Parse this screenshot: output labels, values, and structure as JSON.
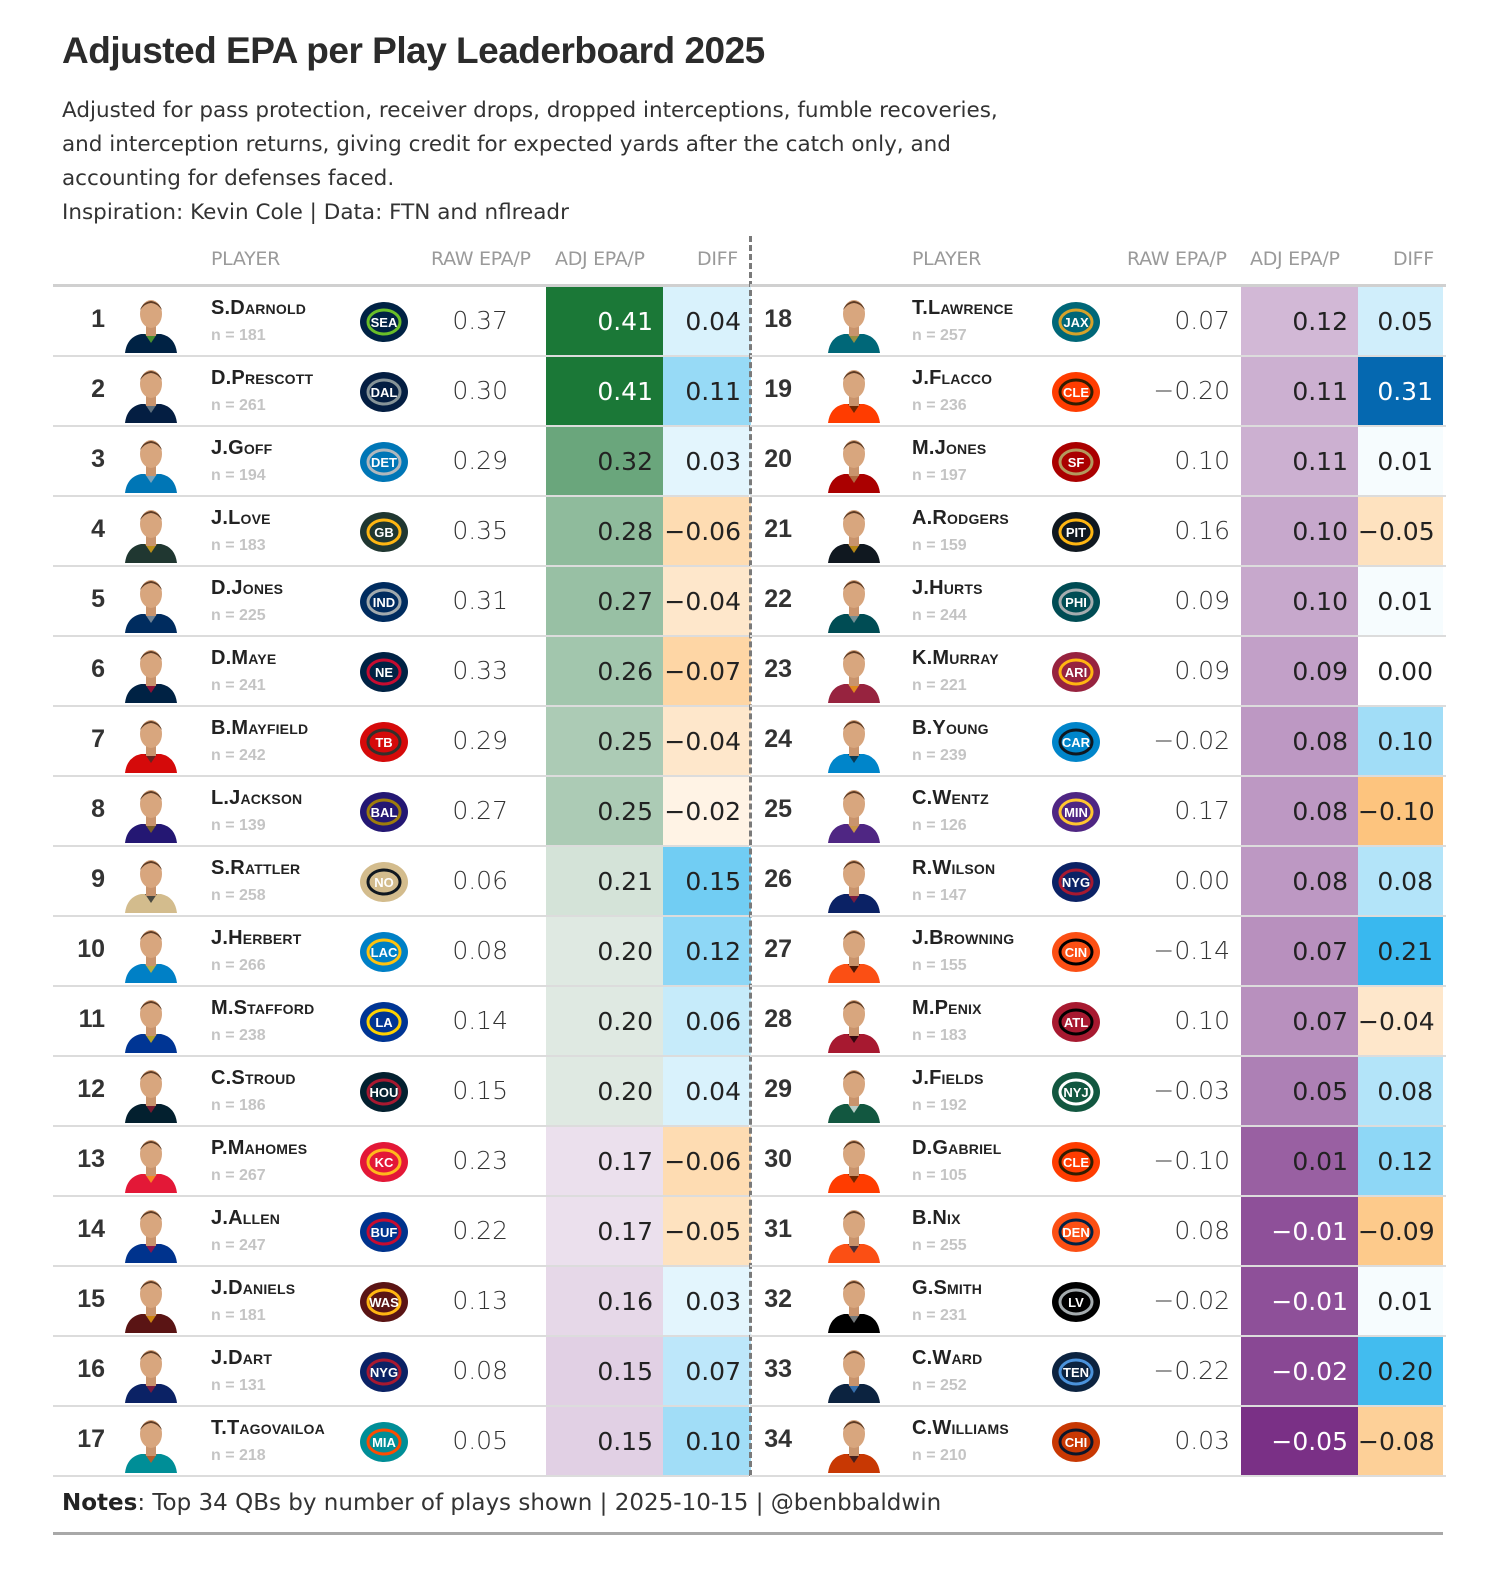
{
  "header": {
    "title": "Adjusted EPA per Play Leaderboard 2025",
    "subtitle_lines": [
      "Adjusted for pass protection, receiver drops, dropped interceptions, fumble recoveries,",
      "and interception returns, giving credit for expected yards after the catch only, and",
      "accounting for defenses faced.",
      "Inspiration: Kevin Cole | Data: FTN and nflreadr"
    ]
  },
  "columns": {
    "player": "PLAYER",
    "raw": "RAW EPA/P",
    "adj": "ADJ EPA/P",
    "diff": "DIFF"
  },
  "footer": {
    "notes_label": "Notes",
    "notes_text": ": Top 34 QBs by number of plays shown | 2025-10-15 | @benbbaldwin"
  },
  "colors": {
    "adj_high": "#1b7837",
    "adj_mid": "#f7f7f7",
    "adj_low": "#762a83",
    "diff_pos": "#0568b0",
    "diff_zero": "#ffffff",
    "diff_neg": "#fdc47e"
  },
  "chart_data": {
    "type": "table",
    "title": "Adjusted EPA per Play Leaderboard 2025",
    "columns": [
      "Rank",
      "Player",
      "n",
      "Team",
      "RAW EPA/P",
      "ADJ EPA/P",
      "DIFF"
    ],
    "rows": [
      {
        "rank": 1,
        "player": "S.Darnold",
        "n": "n = 181",
        "team": "SEA",
        "team_color": "#002244",
        "team_accent": "#69be28",
        "raw": "0.37",
        "adj": "0.41",
        "diff": "0.04"
      },
      {
        "rank": 2,
        "player": "D.Prescott",
        "n": "n = 261",
        "team": "DAL",
        "team_color": "#041e42",
        "team_accent": "#869397",
        "raw": "0.30",
        "adj": "0.41",
        "diff": "0.11"
      },
      {
        "rank": 3,
        "player": "J.Goff",
        "n": "n = 194",
        "team": "DET",
        "team_color": "#0076b6",
        "team_accent": "#b0b7bc",
        "raw": "0.29",
        "adj": "0.32",
        "diff": "0.03"
      },
      {
        "rank": 4,
        "player": "J.Love",
        "n": "n = 183",
        "team": "GB",
        "team_color": "#203731",
        "team_accent": "#ffb612",
        "raw": "0.35",
        "adj": "0.28",
        "diff": "−0.06"
      },
      {
        "rank": 5,
        "player": "D.Jones",
        "n": "n = 225",
        "team": "IND",
        "team_color": "#002c5f",
        "team_accent": "#a2aaad",
        "raw": "0.31",
        "adj": "0.27",
        "diff": "−0.04"
      },
      {
        "rank": 6,
        "player": "D.Maye",
        "n": "n = 241",
        "team": "NE",
        "team_color": "#002244",
        "team_accent": "#c60c30",
        "raw": "0.33",
        "adj": "0.26",
        "diff": "−0.07"
      },
      {
        "rank": 7,
        "player": "B.Mayfield",
        "n": "n = 242",
        "team": "TB",
        "team_color": "#d50a0a",
        "team_accent": "#34302b",
        "raw": "0.29",
        "adj": "0.25",
        "diff": "−0.04"
      },
      {
        "rank": 8,
        "player": "L.Jackson",
        "n": "n = 139",
        "team": "BAL",
        "team_color": "#241773",
        "team_accent": "#9e7c0c",
        "raw": "0.27",
        "adj": "0.25",
        "diff": "−0.02"
      },
      {
        "rank": 9,
        "player": "S.Rattler",
        "n": "n = 258",
        "team": "NO",
        "team_color": "#d3bc8d",
        "team_accent": "#101820",
        "raw": "0.06",
        "adj": "0.21",
        "diff": "0.15"
      },
      {
        "rank": 10,
        "player": "J.Herbert",
        "n": "n = 266",
        "team": "LAC",
        "team_color": "#0080c6",
        "team_accent": "#ffc20e",
        "raw": "0.08",
        "adj": "0.20",
        "diff": "0.12"
      },
      {
        "rank": 11,
        "player": "M.Stafford",
        "n": "n = 238",
        "team": "LA",
        "team_color": "#003594",
        "team_accent": "#ffd100",
        "raw": "0.14",
        "adj": "0.20",
        "diff": "0.06"
      },
      {
        "rank": 12,
        "player": "C.Stroud",
        "n": "n = 186",
        "team": "HOU",
        "team_color": "#03202f",
        "team_accent": "#a71930",
        "raw": "0.15",
        "adj": "0.20",
        "diff": "0.04"
      },
      {
        "rank": 13,
        "player": "P.Mahomes",
        "n": "n = 267",
        "team": "KC",
        "team_color": "#e31837",
        "team_accent": "#ffb81c",
        "raw": "0.23",
        "adj": "0.17",
        "diff": "−0.06"
      },
      {
        "rank": 14,
        "player": "J.Allen",
        "n": "n = 247",
        "team": "BUF",
        "team_color": "#00338d",
        "team_accent": "#c60c30",
        "raw": "0.22",
        "adj": "0.17",
        "diff": "−0.05"
      },
      {
        "rank": 15,
        "player": "J.Daniels",
        "n": "n = 181",
        "team": "WAS",
        "team_color": "#5a1414",
        "team_accent": "#ffb612",
        "raw": "0.13",
        "adj": "0.16",
        "diff": "0.03"
      },
      {
        "rank": 16,
        "player": "J.Dart",
        "n": "n = 131",
        "team": "NYG",
        "team_color": "#0b2265",
        "team_accent": "#a71930",
        "raw": "0.08",
        "adj": "0.15",
        "diff": "0.07"
      },
      {
        "rank": 17,
        "player": "T.Tagovailoa",
        "n": "n = 218",
        "team": "MIA",
        "team_color": "#008e97",
        "team_accent": "#fc4c02",
        "raw": "0.05",
        "adj": "0.15",
        "diff": "0.10"
      },
      {
        "rank": 18,
        "player": "T.Lawrence",
        "n": "n = 257",
        "team": "JAX",
        "team_color": "#006778",
        "team_accent": "#d7a22a",
        "raw": "0.07",
        "adj": "0.12",
        "diff": "0.05"
      },
      {
        "rank": 19,
        "player": "J.Flacco",
        "n": "n = 236",
        "team": "CLE",
        "team_color": "#ff3c00",
        "team_accent": "#311d00",
        "raw": "−0.20",
        "adj": "0.11",
        "diff": "0.31"
      },
      {
        "rank": 20,
        "player": "M.Jones",
        "n": "n = 197",
        "team": "SF",
        "team_color": "#aa0000",
        "team_accent": "#b3995d",
        "raw": "0.10",
        "adj": "0.11",
        "diff": "0.01"
      },
      {
        "rank": 21,
        "player": "A.Rodgers",
        "n": "n = 159",
        "team": "PIT",
        "team_color": "#101820",
        "team_accent": "#ffb612",
        "raw": "0.16",
        "adj": "0.10",
        "diff": "−0.05"
      },
      {
        "rank": 22,
        "player": "J.Hurts",
        "n": "n = 244",
        "team": "PHI",
        "team_color": "#004c54",
        "team_accent": "#a5acaf",
        "raw": "0.09",
        "adj": "0.10",
        "diff": "0.01"
      },
      {
        "rank": 23,
        "player": "K.Murray",
        "n": "n = 221",
        "team": "ARI",
        "team_color": "#97233f",
        "team_accent": "#ffb612",
        "raw": "0.09",
        "adj": "0.09",
        "diff": "0.00"
      },
      {
        "rank": 24,
        "player": "B.Young",
        "n": "n = 239",
        "team": "CAR",
        "team_color": "#0085ca",
        "team_accent": "#101820",
        "raw": "−0.02",
        "adj": "0.08",
        "diff": "0.10"
      },
      {
        "rank": 25,
        "player": "C.Wentz",
        "n": "n = 126",
        "team": "MIN",
        "team_color": "#4f2683",
        "team_accent": "#ffc62f",
        "raw": "0.17",
        "adj": "0.08",
        "diff": "−0.10"
      },
      {
        "rank": 26,
        "player": "R.Wilson",
        "n": "n = 147",
        "team": "NYG",
        "team_color": "#0b2265",
        "team_accent": "#a71930",
        "raw": "0.00",
        "adj": "0.08",
        "diff": "0.08"
      },
      {
        "rank": 27,
        "player": "J.Browning",
        "n": "n = 155",
        "team": "CIN",
        "team_color": "#fb4f14",
        "team_accent": "#000000",
        "raw": "−0.14",
        "adj": "0.07",
        "diff": "0.21"
      },
      {
        "rank": 28,
        "player": "M.Penix",
        "n": "n = 183",
        "team": "ATL",
        "team_color": "#a71930",
        "team_accent": "#000000",
        "raw": "0.10",
        "adj": "0.07",
        "diff": "−0.04"
      },
      {
        "rank": 29,
        "player": "J.Fields",
        "n": "n = 192",
        "team": "NYJ",
        "team_color": "#125740",
        "team_accent": "#ffffff",
        "raw": "−0.03",
        "adj": "0.05",
        "diff": "0.08"
      },
      {
        "rank": 30,
        "player": "D.Gabriel",
        "n": "n = 105",
        "team": "CLE",
        "team_color": "#ff3c00",
        "team_accent": "#311d00",
        "raw": "−0.10",
        "adj": "0.01",
        "diff": "0.12"
      },
      {
        "rank": 31,
        "player": "B.Nix",
        "n": "n = 255",
        "team": "DEN",
        "team_color": "#fb4f14",
        "team_accent": "#002244",
        "raw": "0.08",
        "adj": "−0.01",
        "diff": "−0.09"
      },
      {
        "rank": 32,
        "player": "G.Smith",
        "n": "n = 231",
        "team": "LV",
        "team_color": "#000000",
        "team_accent": "#a5acaf",
        "raw": "−0.02",
        "adj": "−0.01",
        "diff": "0.01"
      },
      {
        "rank": 33,
        "player": "C.Ward",
        "n": "n = 252",
        "team": "TEN",
        "team_color": "#0c2340",
        "team_accent": "#4b92db",
        "raw": "−0.22",
        "adj": "−0.02",
        "diff": "0.20"
      },
      {
        "rank": 34,
        "player": "C.Williams",
        "n": "n = 210",
        "team": "CHI",
        "team_color": "#c83803",
        "team_accent": "#0b162a",
        "raw": "0.03",
        "adj": "−0.05",
        "diff": "−0.08"
      }
    ]
  }
}
